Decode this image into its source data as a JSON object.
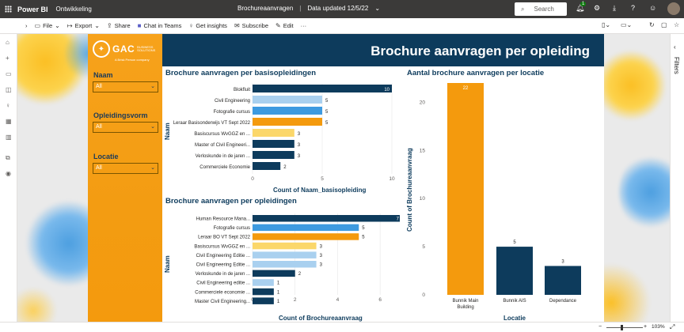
{
  "topbar": {
    "brand": "Power BI",
    "workspace": "Ontwikkeling",
    "report_name": "Brochureaanvragen",
    "separator": "|",
    "updated": "Data updated 12/5/22",
    "updated_chevron": "⌄",
    "search_placeholder": "Search",
    "notification_count": "1"
  },
  "actionbar": {
    "file": "File",
    "export": "Export",
    "share": "Share",
    "chat": "Chat in Teams",
    "insights": "Get insights",
    "subscribe": "Subscribe",
    "edit": "Edit",
    "more": "···"
  },
  "filters_pane": {
    "label": "Filters"
  },
  "logo": {
    "text": "GAC",
    "sub1": "BUSINESS",
    "sub2": "SOLUTIONS",
    "tag": "A Brisk Person company"
  },
  "slicers": [
    {
      "title": "Naam",
      "value": "All"
    },
    {
      "title": "Opleidingsvorm",
      "value": "All"
    },
    {
      "title": "Locatie",
      "value": "All"
    }
  ],
  "header": {
    "title": "Brochure aanvragen per opleiding"
  },
  "chart1": {
    "title": "Brochure aanvragen per basisopleidingen",
    "xlabel": "Count of Naam_basisopleiding",
    "ylabel": "Naam"
  },
  "chart2": {
    "title": "Brochure aanvragen per opleidingen",
    "xlabel": "Count of Brochureaanvraag",
    "ylabel": "Naam"
  },
  "chart3": {
    "title": "Aantal brochure aanvragen per locatie",
    "xlabel": "Locatie",
    "ylabel": "Count of Brochureaanvraag"
  },
  "status": {
    "zoom": "103%"
  },
  "colors": {
    "navy": "#0d3b5c",
    "orange": "#f49a0d",
    "lightblue": "#a9d0ef",
    "blue": "#3d9ae0",
    "yellow": "#fbd76a"
  },
  "chart_data": [
    {
      "type": "bar",
      "orientation": "horizontal",
      "title": "Brochure aanvragen per basisopleidingen",
      "xlabel": "Count of Naam_basisopleiding",
      "ylabel": "Naam",
      "categories": [
        "Blokfluit",
        "Civil Engineering",
        "Fotografie cursus",
        "Leraar Basisonderwijs VT Sept 2022",
        "Basiscursus WvGGZ en ...",
        "Master of Civil Engineeri...",
        "Verloskunde in de jaren ...",
        "Commerciele Economie"
      ],
      "values": [
        10,
        5,
        5,
        5,
        3,
        3,
        3,
        2
      ],
      "colors": [
        "#0d3b5c",
        "#a9d0ef",
        "#3d9ae0",
        "#f49a0d",
        "#fbd76a",
        "#0d3b5c",
        "#0d3b5c",
        "#0d3b5c"
      ],
      "xlim": [
        0,
        10
      ],
      "xticks": [
        0,
        5,
        10
      ]
    },
    {
      "type": "bar",
      "orientation": "horizontal",
      "title": "Brochure aanvragen per opleidingen",
      "xlabel": "Count of Brochureaanvraag",
      "ylabel": "Naam",
      "categories": [
        "Human Resource Mana...",
        "Fotografie cursus",
        "Leraar BO VT Sept 2022",
        "Basiscursus WvGGZ en ...",
        "Civil Engineering Editie ...",
        "Civil Engineering Editie ...",
        "Verloskunde in de jaren ...",
        "Civil Engineering editie ...",
        "Commerciele economie ...",
        "Master Civil Engineering..."
      ],
      "values": [
        7,
        5,
        5,
        3,
        3,
        3,
        2,
        1,
        1,
        1
      ],
      "colors": [
        "#0d3b5c",
        "#3d9ae0",
        "#f49a0d",
        "#fbd76a",
        "#a9d0ef",
        "#a9d0ef",
        "#0d3b5c",
        "#a9d0ef",
        "#0d3b5c",
        "#0d3b5c"
      ],
      "xlim": [
        0,
        7
      ],
      "xticks": [
        0,
        2,
        4,
        6
      ]
    },
    {
      "type": "bar",
      "orientation": "vertical",
      "title": "Aantal brochure aanvragen per locatie",
      "xlabel": "Locatie",
      "ylabel": "Count of Brochureaanvraag",
      "categories": [
        "Bunnik Main Building",
        "Bunnik AIS",
        "Dependance"
      ],
      "values": [
        22,
        5,
        3
      ],
      "colors": [
        "#f49a0d",
        "#0d3b5c",
        "#0d3b5c"
      ],
      "ylim": [
        0,
        22
      ],
      "yticks": [
        0,
        5,
        10,
        15,
        20
      ]
    }
  ]
}
